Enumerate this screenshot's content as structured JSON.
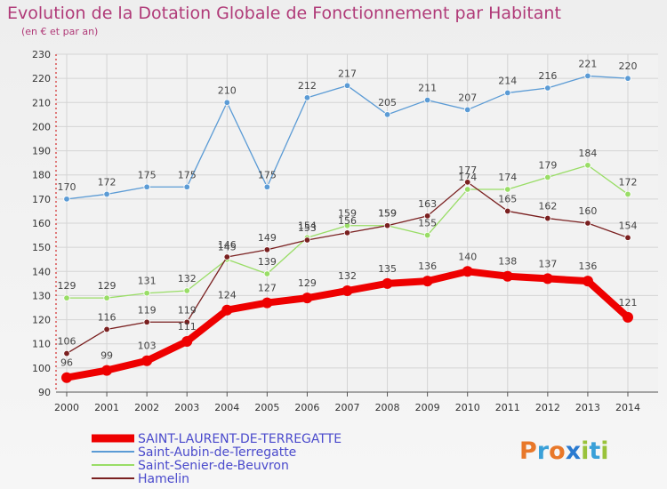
{
  "chart_data": {
    "type": "line",
    "title": "Evolution de la Dotation Globale de Fonctionnement par Habitant",
    "subtitle": "(en € et par an)",
    "x": [
      2000,
      2001,
      2002,
      2003,
      2004,
      2005,
      2006,
      2007,
      2008,
      2009,
      2010,
      2011,
      2012,
      2013,
      2014
    ],
    "ylim": [
      90,
      230
    ],
    "yticks": [
      90,
      100,
      110,
      120,
      130,
      140,
      150,
      160,
      170,
      180,
      190,
      200,
      210,
      220,
      230
    ],
    "grid": true,
    "legend_position": "bottom-left",
    "series": [
      {
        "name": "SAINT-LAURENT-DE-TERREGATTE",
        "color": "#ee0000",
        "values": [
          96,
          99,
          103,
          111,
          124,
          127,
          129,
          132,
          135,
          136,
          140,
          138,
          137,
          136,
          121
        ]
      },
      {
        "name": "Saint-Aubin-de-Terregatte",
        "color": "#5b9bd5",
        "values": [
          170,
          172,
          175,
          175,
          210,
          175,
          212,
          217,
          205,
          211,
          207,
          214,
          216,
          221,
          220
        ]
      },
      {
        "name": "Saint-Senier-de-Beuvron",
        "color": "#99dd66",
        "values": [
          129,
          129,
          131,
          132,
          145,
          139,
          154,
          159,
          159,
          155,
          174,
          174,
          179,
          184,
          172
        ]
      },
      {
        "name": "Hamelin",
        "color": "#7a2020",
        "values": [
          106,
          116,
          119,
          119,
          146,
          149,
          153,
          156,
          159,
          163,
          177,
          165,
          162,
          160,
          154
        ]
      }
    ]
  },
  "logo": {
    "text": "Proxiti"
  }
}
